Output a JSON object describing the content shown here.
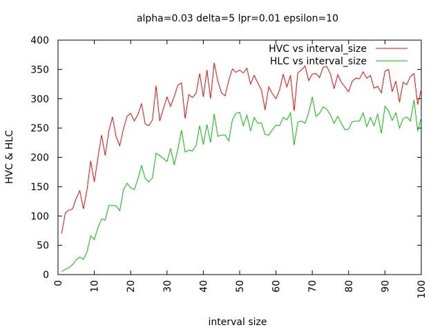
{
  "chart_data": {
    "type": "line",
    "title": "alpha=0.03 delta=5 lpr=0.01 epsilon=10",
    "xlabel": "interval size",
    "ylabel": "HVC & HLC",
    "xlim": [
      0,
      100
    ],
    "ylim": [
      0,
      400
    ],
    "x_ticks": [
      0,
      10,
      20,
      30,
      40,
      50,
      60,
      70,
      80,
      90,
      100
    ],
    "y_ticks": [
      0,
      50,
      100,
      150,
      200,
      250,
      300,
      350,
      400
    ],
    "grid": false,
    "legend_position": "top-right",
    "x": [
      1,
      2,
      3,
      4,
      5,
      6,
      7,
      8,
      9,
      10,
      11,
      12,
      13,
      14,
      15,
      16,
      17,
      18,
      19,
      20,
      21,
      22,
      23,
      24,
      25,
      26,
      27,
      28,
      29,
      30,
      31,
      32,
      33,
      34,
      35,
      36,
      37,
      38,
      39,
      40,
      41,
      42,
      43,
      44,
      45,
      46,
      47,
      48,
      49,
      50,
      51,
      52,
      53,
      54,
      55,
      56,
      57,
      58,
      59,
      60,
      61,
      62,
      63,
      64,
      65,
      66,
      67,
      68,
      69,
      70,
      71,
      72,
      73,
      74,
      75,
      76,
      77,
      78,
      79,
      80,
      81,
      82,
      83,
      84,
      85,
      86,
      87,
      88,
      89,
      90,
      91,
      92,
      93,
      94,
      95,
      96,
      97,
      98,
      99,
      100
    ],
    "series": [
      {
        "name": "HVC vs interval_size",
        "color": "#ff0000",
        "values": [
          70,
          105,
          110,
          112,
          130,
          143,
          112,
          145,
          194,
          158,
          200,
          238,
          203,
          245,
          269,
          235,
          220,
          248,
          270,
          275,
          262,
          273,
          292,
          257,
          254,
          264,
          322,
          262,
          283,
          303,
          287,
          304,
          323,
          327,
          266,
          307,
          302,
          309,
          343,
          303,
          349,
          300,
          361,
          330,
          310,
          305,
          331,
          351,
          345,
          349,
          344,
          352,
          325,
          340,
          327,
          315,
          281,
          320,
          309,
          300,
          315,
          342,
          320,
          340,
          279,
          344,
          349,
          356,
          331,
          342,
          343,
          336,
          354,
          355,
          342,
          317,
          341,
          328,
          320,
          312,
          330,
          335,
          334,
          346,
          335,
          340,
          318,
          321,
          310,
          347,
          350,
          312,
          330,
          294,
          328,
          324,
          338,
          343,
          290,
          316
        ]
      },
      {
        "name": "HLC vs interval_size",
        "color": "#00c000",
        "values": [
          5,
          9,
          12,
          17,
          25,
          30,
          26,
          39,
          66,
          60,
          80,
          95,
          93,
          118,
          118,
          117,
          109,
          144,
          156,
          148,
          145,
          163,
          186,
          164,
          158,
          165,
          207,
          203,
          198,
          193,
          215,
          187,
          214,
          246,
          209,
          212,
          211,
          220,
          254,
          222,
          256,
          225,
          274,
          236,
          238,
          238,
          228,
          264,
          275,
          277,
          254,
          272,
          245,
          268,
          258,
          259,
          239,
          238,
          247,
          255,
          254,
          268,
          264,
          276,
          221,
          260,
          262,
          258,
          276,
          303,
          270,
          275,
          286,
          282,
          272,
          258,
          270,
          258,
          247,
          248,
          261,
          262,
          262,
          276,
          252,
          268,
          254,
          274,
          241,
          287,
          279,
          263,
          276,
          250,
          266,
          269,
          262,
          298,
          245,
          268
        ]
      }
    ]
  }
}
